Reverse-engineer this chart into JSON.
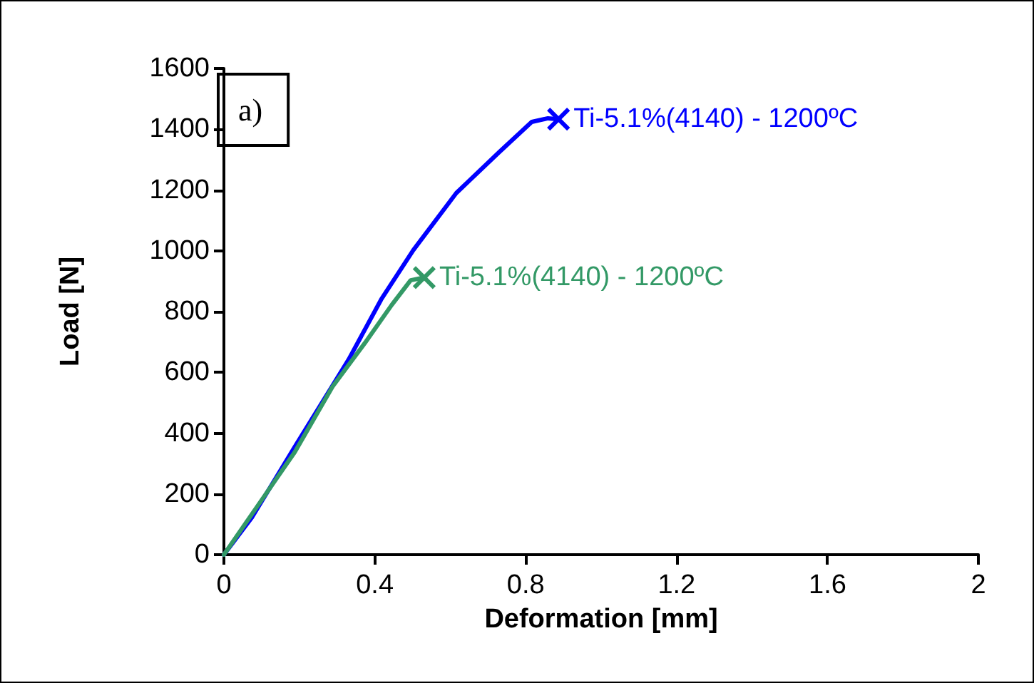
{
  "chart_data": {
    "type": "line",
    "xlabel": "Deformation [mm]",
    "ylabel": "Load [N]",
    "xlim": [
      0,
      2
    ],
    "xticks": [
      0,
      0.4,
      0.8,
      1.2,
      1.6,
      2
    ],
    "ylim": [
      0,
      1600
    ],
    "yticks": [
      0,
      200,
      400,
      600,
      800,
      1000,
      1200,
      1400,
      1600
    ],
    "grid": false,
    "legend": false,
    "line_style": "solid",
    "annotations": [
      "a)"
    ],
    "series": [
      {
        "name": "Ti-5.1%(4140) - 1200ºC",
        "color": "#0000ff",
        "x": [
          0,
          0.074,
          0.188,
          0.331,
          0.417,
          0.502,
          0.616,
          0.73,
          0.816,
          0.859,
          0.887
        ],
        "values": [
          0,
          122,
          355,
          643,
          840,
          1002,
          1190,
          1325,
          1424,
          1436,
          1433
        ]
      },
      {
        "name": "Ti-5.1%(4140) - 1200ºC",
        "color": "#339966",
        "x": [
          0,
          0.088,
          0.188,
          0.288,
          0.374,
          0.445,
          0.495,
          0.531
        ],
        "values": [
          0,
          158,
          338,
          553,
          697,
          822,
          903,
          912
        ]
      }
    ]
  }
}
